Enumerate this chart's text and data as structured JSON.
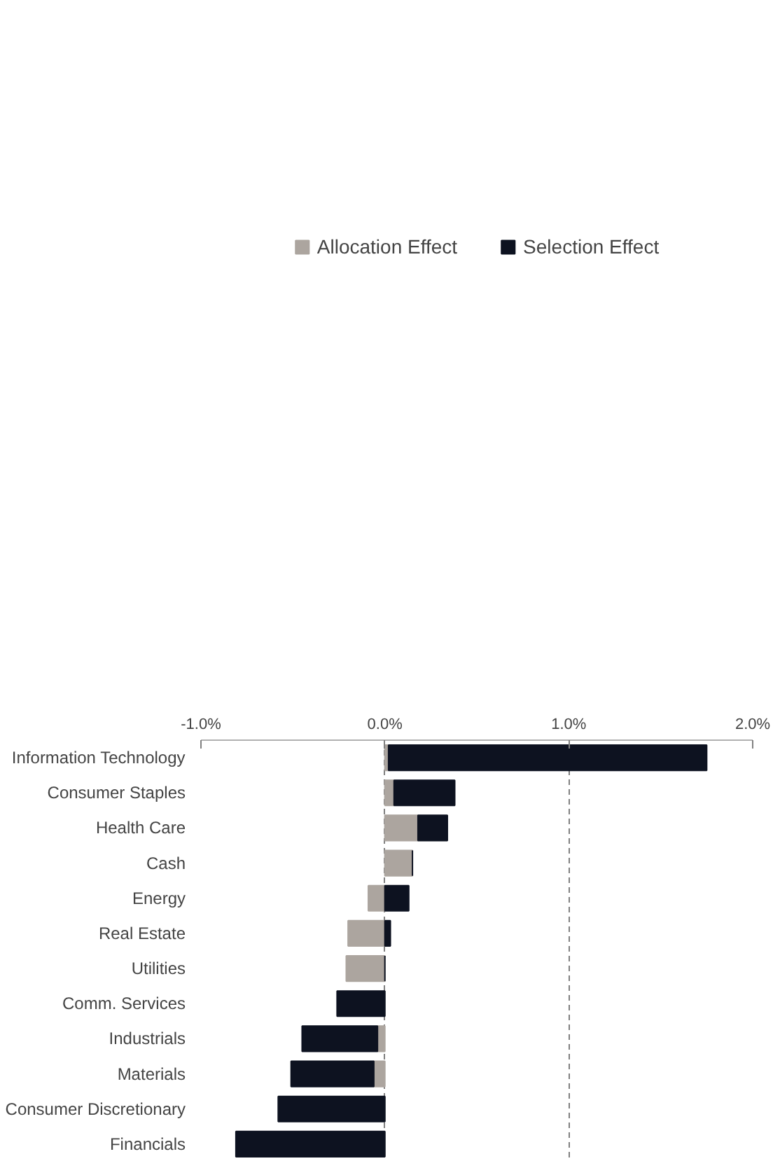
{
  "chart_data": {
    "type": "bar",
    "orientation": "horizontal",
    "stacked": true,
    "categories": [
      "Information Technology",
      "Consumer Staples",
      "Health Care",
      "Cash",
      "Energy",
      "Real Estate",
      "Utilities",
      "Comm. Services",
      "Industrials",
      "Materials",
      "Consumer Discretionary",
      "Financials"
    ],
    "series": [
      {
        "name": "Allocation Effect",
        "color": "#aca59f",
        "values": [
          0.02,
          0.05,
          0.18,
          0.15,
          -0.09,
          -0.2,
          -0.21,
          0,
          -0.04,
          -0.06,
          0,
          0
        ]
      },
      {
        "name": "Selection Effect",
        "color": "#0d1220",
        "values": [
          1.73,
          0.33,
          0.16,
          0,
          0.13,
          0.03,
          0,
          -0.26,
          -0.41,
          -0.45,
          -0.58,
          -0.81
        ]
      }
    ],
    "xlim": [
      -1.0,
      2.0
    ],
    "xticks": [
      {
        "value": -1.0,
        "label": "-1.0%"
      },
      {
        "value": 0.0,
        "label": "0.0%"
      },
      {
        "value": 1.0,
        "label": "1.0%"
      },
      {
        "value": 2.0,
        "label": "2.0%"
      }
    ],
    "grid": "x",
    "legend": "top"
  }
}
